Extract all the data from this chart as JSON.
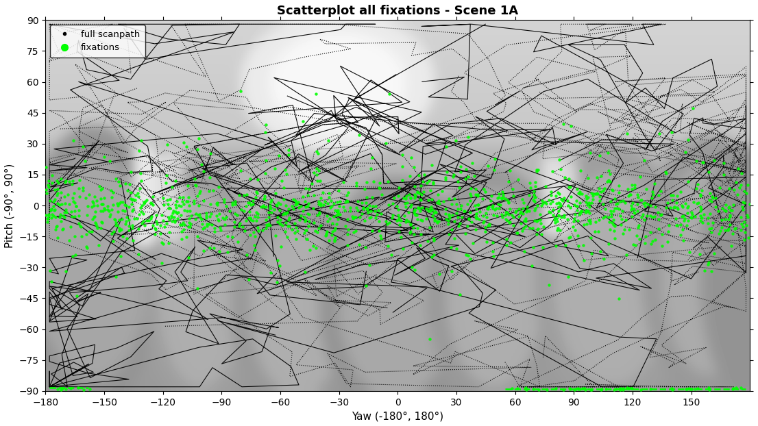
{
  "title": "Scatterplot all fixations - Scene 1A",
  "xlabel": "Yaw (-180°, 180°)",
  "ylabel": "Pitch (-90°, 90°)",
  "xlim": [
    -180,
    180
  ],
  "ylim": [
    -90,
    90
  ],
  "xticks": [
    -180,
    -150,
    -120,
    -90,
    -60,
    -30,
    0,
    30,
    60,
    90,
    120,
    150
  ],
  "yticks": [
    -90,
    -75,
    -60,
    -45,
    -30,
    -15,
    0,
    15,
    30,
    45,
    60,
    75,
    90
  ],
  "bg_base_color": "#b8b8b8",
  "scanpath_color": "black",
  "fixation_color": "#00ff00",
  "legend_entries": [
    "full scanpath",
    "fixations"
  ],
  "title_fontsize": 13,
  "label_fontsize": 11,
  "tick_fontsize": 10
}
